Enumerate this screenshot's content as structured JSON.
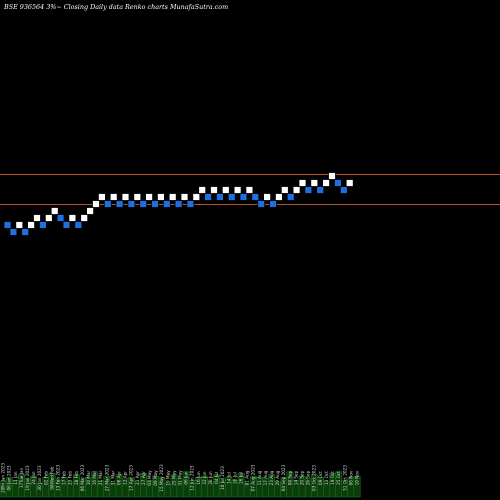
{
  "colors": {
    "background": "#000000",
    "up_brick": "#ffffff",
    "down_brick": "#1e6fe0",
    "brick_edge": "#000000",
    "level_line": "#b4552a",
    "volume_fill": "#0b3d0b",
    "volume_edge": "#1f8a1f",
    "label_text": "#d9d9d9",
    "title_text": "#ffffff"
  },
  "chart_data": {
    "type": "renko",
    "title": "BSE 936564  3%~  Closing Daily data  Renko  charts MunafaSutra.com",
    "xlabel": "",
    "ylabel": "",
    "grid": false,
    "legend": "none",
    "brick_levels": [
      -4,
      -5,
      -4,
      -5,
      -4,
      -3,
      -4,
      -3,
      -2,
      -3,
      -4,
      -3,
      -4,
      -3,
      -2,
      -1,
      0,
      -1,
      0,
      -1,
      0,
      -1,
      0,
      -1,
      0,
      -1,
      0,
      -1,
      0,
      -1,
      0,
      -1,
      0,
      1,
      0,
      1,
      0,
      1,
      0,
      1,
      0,
      1,
      0,
      -1,
      0,
      -1,
      0,
      1,
      0,
      1,
      2,
      1,
      2,
      1,
      2,
      3,
      2,
      1,
      2
    ],
    "brick_directions": [
      "down",
      "down",
      "up",
      "down",
      "up",
      "up",
      "down",
      "up",
      "up",
      "down",
      "down",
      "up",
      "down",
      "up",
      "up",
      "up",
      "up",
      "down",
      "up",
      "down",
      "up",
      "down",
      "up",
      "down",
      "up",
      "down",
      "up",
      "down",
      "up",
      "down",
      "up",
      "down",
      "up",
      "up",
      "down",
      "up",
      "down",
      "up",
      "down",
      "up",
      "down",
      "up",
      "down",
      "down",
      "up",
      "down",
      "up",
      "up",
      "down",
      "up",
      "up",
      "down",
      "up",
      "down",
      "up",
      "up",
      "down",
      "down",
      "up"
    ],
    "reference_levels": [
      1,
      -1
    ],
    "volume": [
      0.55,
      0.7,
      0.6,
      0.8,
      0.65,
      0.75,
      0.5,
      0.7,
      0.85,
      0.6,
      0.7,
      0.55,
      0.8,
      0.65,
      0.7,
      0.9,
      0.6,
      0.75,
      0.5,
      0.8,
      0.65,
      0.7,
      0.55,
      0.85,
      0.6,
      0.75,
      0.7,
      0.5,
      0.8,
      0.65,
      0.9,
      0.6,
      0.7,
      0.75,
      0.55,
      0.8,
      0.65,
      0.7,
      0.6,
      0.85,
      0.5,
      0.75,
      0.7,
      0.65,
      0.8,
      0.55,
      0.7,
      0.9,
      0.6,
      0.75,
      0.65,
      0.8,
      0.7,
      0.55,
      0.85,
      0.9,
      0.6,
      0.7,
      0.75
    ],
    "date_labels": [
      "20Fri Jan 2023",
      "06 Jan 2023",
      "11 Jan",
      "17Tue Jan",
      "19 Jan 2023",
      "24 Jan",
      "30 Jan 2023",
      "02 Feb",
      "08Wed Feb",
      "13 Feb 2023",
      "17 Feb",
      "23 Feb",
      "28 Feb",
      "06 Mar 2023",
      "10 Mar",
      "16 Mar",
      "21 Mar",
      "27 Mar 2023",
      "31 Mar",
      "06 Apr",
      "12 Apr",
      "17 Apr 2023",
      "21 Apr",
      "27 Apr",
      "03 May",
      "09 May",
      "15 May 2023",
      "19 May",
      "25 May",
      "31 May",
      "06 Jun",
      "12 Jun 2023",
      "16 Jun",
      "22 Jun",
      "28 Jun",
      "04 Jul",
      "10 Jul 2023",
      "14 Jul",
      "20 Jul",
      "26 Jul",
      "01 Aug",
      "07 Aug 2023",
      "11 Aug",
      "17 Aug",
      "23 Aug",
      "29 Aug",
      "04 Sep 2023",
      "08 Sep",
      "14 Sep",
      "20 Sep",
      "26 Sep",
      "03 Oct 2023",
      "09 Oct",
      "13 Oct",
      "19 Oct",
      "25 Oct",
      "31 Oct 2023",
      "06 Nov",
      "10 Nov"
    ]
  }
}
